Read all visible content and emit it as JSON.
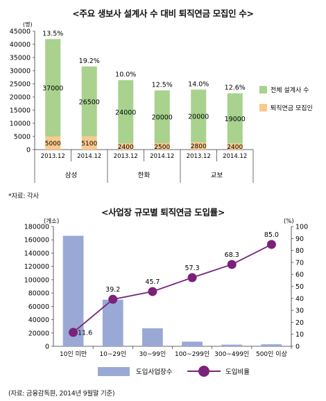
{
  "chart_data": [
    {
      "type": "bar",
      "stacked": true,
      "title": "<주요 생보사 설계사 수 대비 퇴직연금 모집인 수>",
      "y_unit": "(명)",
      "ylim": [
        0,
        45000
      ],
      "y_ticks": [
        "0",
        "5000",
        "10000",
        "15000",
        "20000",
        "25000",
        "30000",
        "35000",
        "40000",
        "45000"
      ],
      "y_tick_values": [
        0,
        5000,
        10000,
        15000,
        20000,
        25000,
        30000,
        35000,
        40000,
        45000
      ],
      "categories": [
        "2013.12",
        "2014.12",
        "2013.12",
        "2014.12",
        "2013.12",
        "2014.12"
      ],
      "groups": [
        {
          "label": "삼성",
          "categories": [
            "2013.12",
            "2014.12"
          ]
        },
        {
          "label": "한화",
          "categories": [
            "2013.12",
            "2014.12"
          ]
        },
        {
          "label": "교보",
          "categories": [
            "2013.12",
            "2014.12"
          ]
        }
      ],
      "series": [
        {
          "name": "퇴직연금 모집인",
          "color": "#f9c98d",
          "values": [
            5000,
            5100,
            2400,
            2500,
            2800,
            2400
          ]
        },
        {
          "name": "전체 설계사 수",
          "color": "#a8d28e",
          "values": [
            37000,
            26500,
            24000,
            20000,
            20000,
            19000
          ]
        }
      ],
      "ratio_labels": [
        "13.5%",
        "19.2%",
        "10.0%",
        "12.5%",
        "14.0%",
        "12.6%"
      ],
      "legend_order": [
        "전체 설계사 수",
        "퇴직연금 모집인"
      ],
      "legend_position": "right"
    },
    {
      "type": "bar+line",
      "title": "<사업장 규모별 퇴직연금 도입률>",
      "categories": [
        "10인 미만",
        "10~29인",
        "30~99인",
        "100~299인",
        "300~499인",
        "500인 이상"
      ],
      "left_axis": {
        "unit": "(개소)",
        "ylim": [
          0,
          180000
        ],
        "ticks": [
          "0",
          "20000",
          "40000",
          "60000",
          "80000",
          "100000",
          "120000",
          "140000",
          "160000",
          "180000"
        ],
        "tick_values": [
          0,
          20000,
          40000,
          60000,
          80000,
          100000,
          120000,
          140000,
          160000,
          180000
        ]
      },
      "right_axis": {
        "unit": "(%)",
        "ylim": [
          0,
          100
        ],
        "ticks": [
          "0",
          "10",
          "20",
          "30",
          "40",
          "50",
          "60",
          "70",
          "80",
          "90",
          "100"
        ],
        "tick_values": [
          0,
          10,
          20,
          30,
          40,
          50,
          60,
          70,
          80,
          90,
          100
        ]
      },
      "bar_series": {
        "name": "도입사업장수",
        "color": "#9aa8d6",
        "values": [
          166000,
          70000,
          27000,
          7000,
          2500,
          3000
        ]
      },
      "line_series": {
        "name": "도입비율",
        "color": "#7a2279",
        "values": [
          11.6,
          39.2,
          45.7,
          57.3,
          68.3,
          85.0
        ],
        "labels": [
          "11.6",
          "39.2",
          "45.7",
          "57.3",
          "68.3",
          "85.0"
        ]
      },
      "legend_position": "bottom"
    }
  ],
  "notes": {
    "source1": "*자료: 각사",
    "source2": "(자료: 금융감독원, 2014년 9월말 기준)"
  }
}
